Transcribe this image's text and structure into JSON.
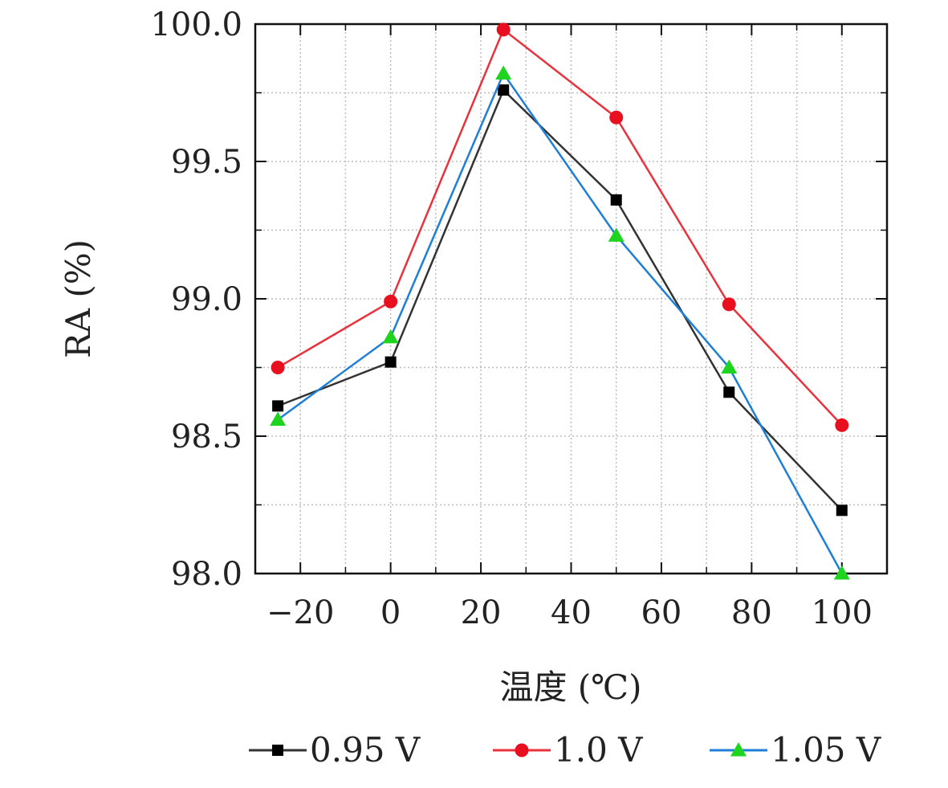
{
  "chart_data": {
    "type": "line",
    "title": "",
    "xlabel": "温度 (℃)",
    "ylabel": "RA (%)",
    "x": [
      -25,
      0,
      25,
      50,
      75,
      100
    ],
    "xlim": [
      -30,
      110
    ],
    "ylim": [
      98.0,
      100.0
    ],
    "x_ticks": [
      -20,
      0,
      20,
      40,
      60,
      80,
      100
    ],
    "x_tick_labels": [
      "−20",
      "0",
      "20",
      "40",
      "60",
      "80",
      "100"
    ],
    "x_minor_ticks": [
      -10,
      10,
      30,
      50,
      70,
      90
    ],
    "y_ticks": [
      98.0,
      98.5,
      99.0,
      99.5,
      100.0
    ],
    "y_tick_labels": [
      "98.0",
      "98.5",
      "99.0",
      "99.5",
      "100.0"
    ],
    "y_minor_ticks": [
      98.25,
      98.75,
      99.25,
      99.75
    ],
    "grid": true,
    "legend_position": "bottom",
    "series": [
      {
        "name": "0.95 V",
        "marker": "square",
        "color": "#333333",
        "marker_color": "#000000",
        "values": [
          98.61,
          98.77,
          99.76,
          99.36,
          98.66,
          98.23
        ]
      },
      {
        "name": "1.0 V",
        "marker": "circle",
        "color": "#e8323c",
        "marker_color": "#e8101e",
        "values": [
          98.75,
          98.99,
          99.98,
          99.66,
          98.98,
          98.54
        ]
      },
      {
        "name": "1.05 V",
        "marker": "triangle",
        "color": "#1f7fd6",
        "marker_color": "#1ed41e",
        "values": [
          98.56,
          98.86,
          99.82,
          99.23,
          98.75,
          98.0
        ]
      }
    ]
  }
}
